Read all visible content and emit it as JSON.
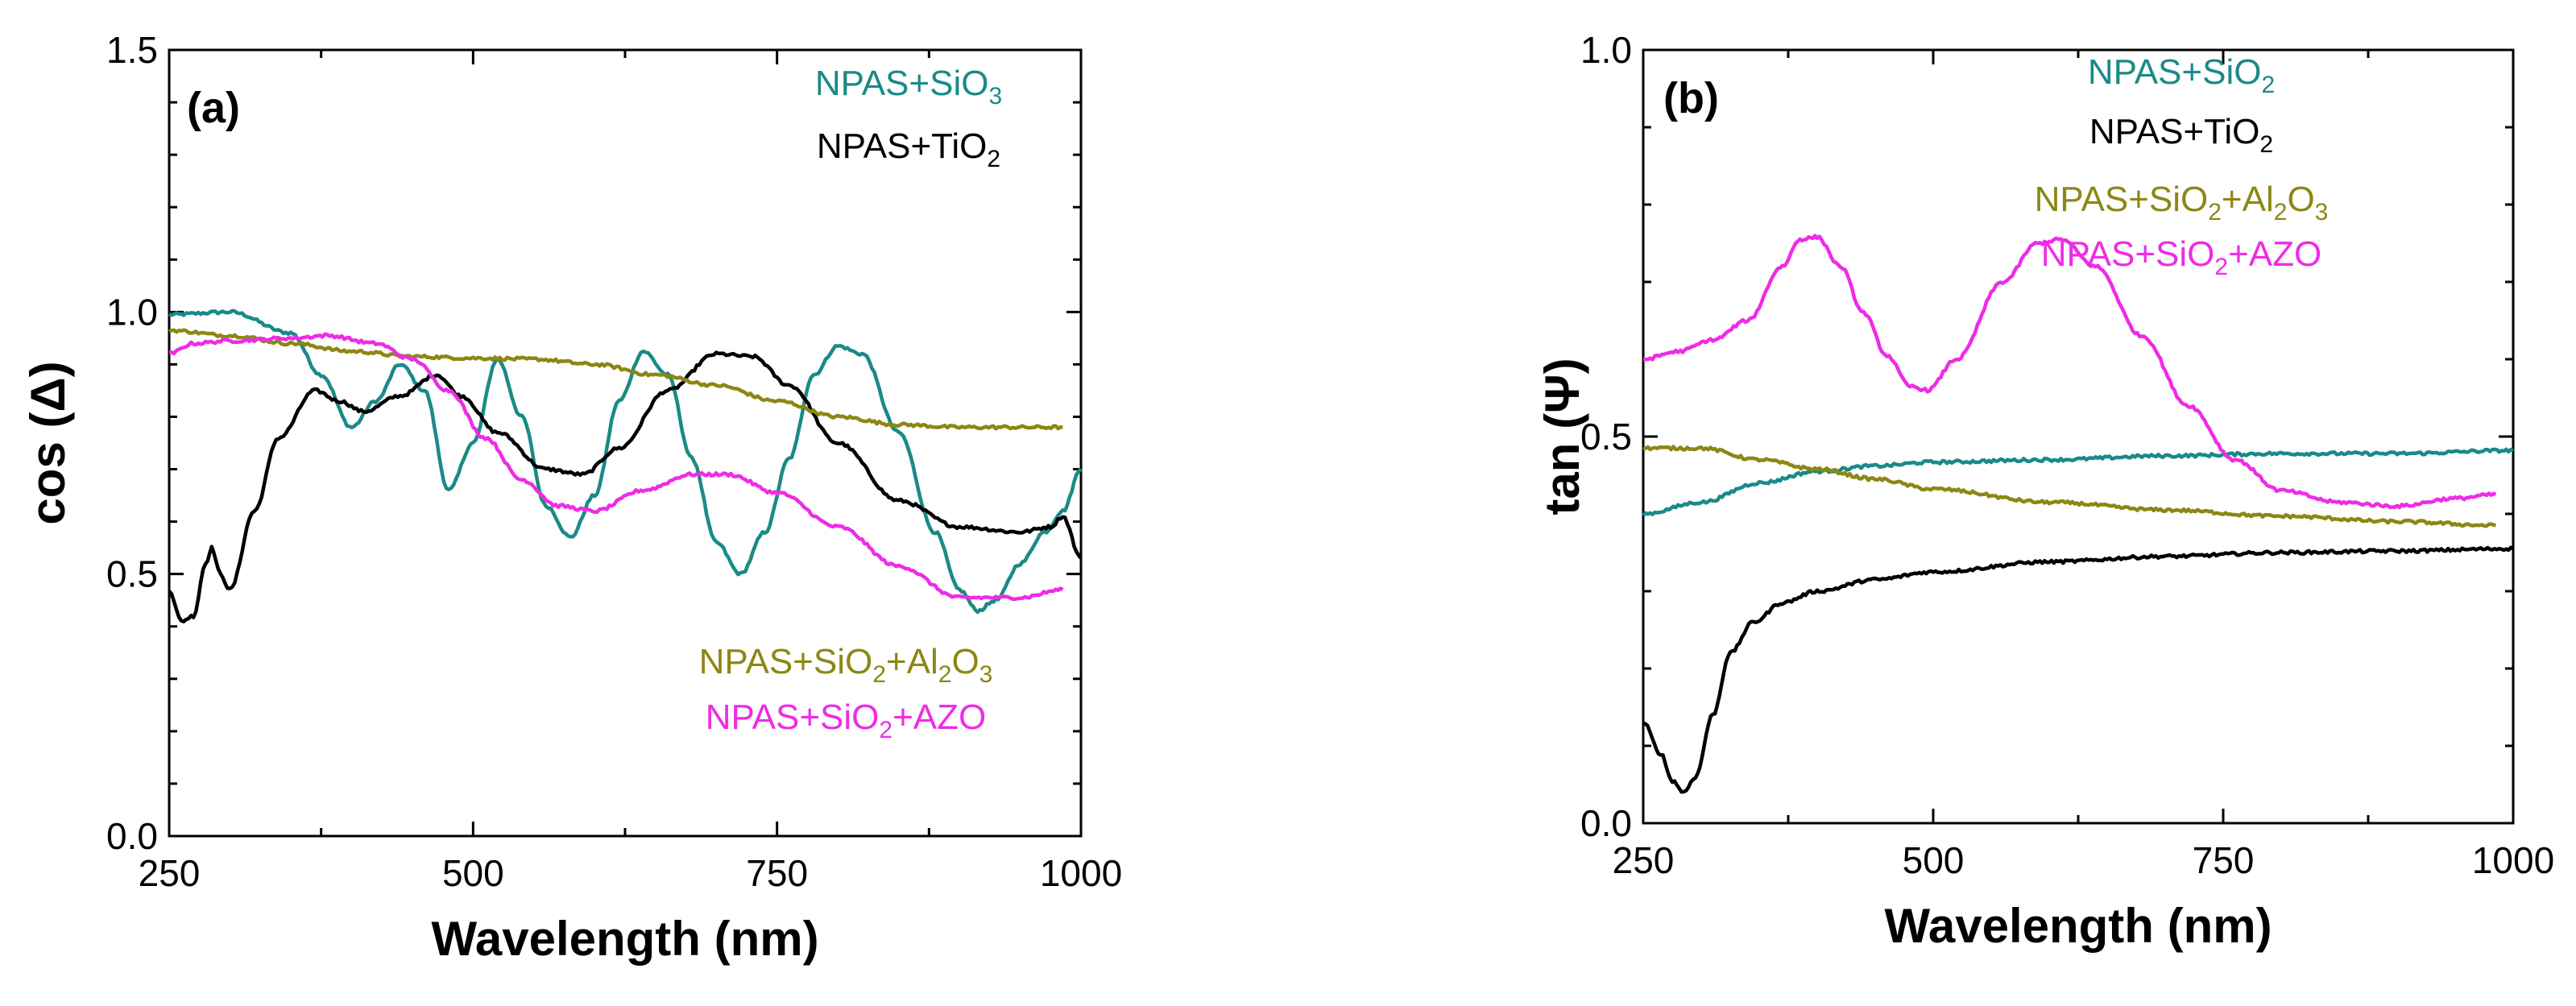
{
  "chart_data": [
    {
      "panel": "a",
      "type": "line",
      "panel_label": "(a)",
      "xlabel": "Wavelength (nm)",
      "ylabel": "cos (Δ)",
      "xlim": [
        250,
        1000
      ],
      "ylim": [
        0.0,
        1.5
      ],
      "x_ticks": [
        "250",
        "500",
        "750",
        "1000"
      ],
      "y_ticks": [
        "0.0",
        "0.5",
        "1.0",
        "1.5"
      ],
      "legend": [
        {
          "series": "NPAS+SiO3",
          "parts": [
            {
              "t": "NPAS+SiO"
            },
            {
              "t": "3",
              "sub": true
            }
          ]
        },
        {
          "series": "NPAS+TiO2",
          "parts": [
            {
              "t": "NPAS+TiO"
            },
            {
              "t": "2",
              "sub": true
            }
          ]
        },
        {
          "series": "NPAS+SiO2+Al2O3",
          "parts": [
            {
              "t": "NPAS+SiO"
            },
            {
              "t": "2",
              "sub": true
            },
            {
              "t": "+Al"
            },
            {
              "t": "2",
              "sub": true
            },
            {
              "t": "O"
            },
            {
              "t": "3",
              "sub": true
            }
          ]
        },
        {
          "series": "NPAS+SiO2+AZO",
          "parts": [
            {
              "t": "NPAS+SiO"
            },
            {
              "t": "2",
              "sub": true
            },
            {
              "t": "+AZO"
            }
          ]
        }
      ],
      "series": [
        {
          "name": "NPAS+SiO3",
          "color": "#1a8a87",
          "points": [
            [
              250,
              0.995
            ],
            [
              300,
              1.0
            ],
            [
              350,
              0.96
            ],
            [
              375,
              0.88
            ],
            [
              400,
              0.78
            ],
            [
              420,
              0.83
            ],
            [
              440,
              0.9
            ],
            [
              460,
              0.85
            ],
            [
              480,
              0.66
            ],
            [
              500,
              0.75
            ],
            [
              520,
              0.91
            ],
            [
              540,
              0.8
            ],
            [
              560,
              0.63
            ],
            [
              580,
              0.57
            ],
            [
              600,
              0.65
            ],
            [
              620,
              0.83
            ],
            [
              640,
              0.925
            ],
            [
              660,
              0.88
            ],
            [
              680,
              0.72
            ],
            [
              700,
              0.56
            ],
            [
              720,
              0.5
            ],
            [
              740,
              0.58
            ],
            [
              760,
              0.72
            ],
            [
              780,
              0.88
            ],
            [
              800,
              0.935
            ],
            [
              820,
              0.92
            ],
            [
              850,
              0.77
            ],
            [
              880,
              0.58
            ],
            [
              900,
              0.47
            ],
            [
              915,
              0.43
            ],
            [
              930,
              0.45
            ],
            [
              950,
              0.52
            ],
            [
              970,
              0.58
            ],
            [
              985,
              0.62
            ],
            [
              1000,
              0.7
            ]
          ]
        },
        {
          "name": "NPAS+TiO2",
          "color": "#000000",
          "points": [
            [
              250,
              0.47
            ],
            [
              260,
              0.41
            ],
            [
              270,
              0.42
            ],
            [
              280,
              0.52
            ],
            [
              285,
              0.55
            ],
            [
              292,
              0.5
            ],
            [
              300,
              0.47
            ],
            [
              320,
              0.62
            ],
            [
              340,
              0.76
            ],
            [
              370,
              0.85
            ],
            [
              390,
              0.83
            ],
            [
              410,
              0.81
            ],
            [
              440,
              0.84
            ],
            [
              470,
              0.88
            ],
            [
              490,
              0.84
            ],
            [
              520,
              0.77
            ],
            [
              560,
              0.7
            ],
            [
              590,
              0.69
            ],
            [
              620,
              0.74
            ],
            [
              660,
              0.85
            ],
            [
              700,
              0.92
            ],
            [
              730,
              0.915
            ],
            [
              760,
              0.86
            ],
            [
              800,
              0.75
            ],
            [
              850,
              0.64
            ],
            [
              900,
              0.59
            ],
            [
              950,
              0.58
            ],
            [
              975,
              0.59
            ],
            [
              985,
              0.61
            ],
            [
              1000,
              0.53
            ]
          ]
        },
        {
          "name": "NPAS+SiO2+Al2O3",
          "color": "#8c8714",
          "points": [
            [
              250,
              0.965
            ],
            [
              300,
              0.955
            ],
            [
              350,
              0.94
            ],
            [
              400,
              0.925
            ],
            [
              450,
              0.915
            ],
            [
              500,
              0.912
            ],
            [
              550,
              0.91
            ],
            [
              600,
              0.9
            ],
            [
              650,
              0.88
            ],
            [
              700,
              0.86
            ],
            [
              750,
              0.83
            ],
            [
              800,
              0.8
            ],
            [
              850,
              0.785
            ],
            [
              900,
              0.78
            ],
            [
              950,
              0.78
            ],
            [
              985,
              0.78
            ]
          ]
        },
        {
          "name": "NPAS+SiO2+AZO",
          "color": "#ee2ce6",
          "points": [
            [
              250,
              0.92
            ],
            [
              270,
              0.94
            ],
            [
              300,
              0.945
            ],
            [
              350,
              0.95
            ],
            [
              380,
              0.955
            ],
            [
              420,
              0.94
            ],
            [
              450,
              0.91
            ],
            [
              480,
              0.85
            ],
            [
              510,
              0.76
            ],
            [
              540,
              0.68
            ],
            [
              570,
              0.63
            ],
            [
              600,
              0.62
            ],
            [
              640,
              0.66
            ],
            [
              680,
              0.69
            ],
            [
              710,
              0.69
            ],
            [
              750,
              0.655
            ],
            [
              800,
              0.59
            ],
            [
              850,
              0.515
            ],
            [
              900,
              0.455
            ],
            [
              950,
              0.455
            ],
            [
              985,
              0.47
            ]
          ]
        }
      ]
    },
    {
      "panel": "b",
      "type": "line",
      "panel_label": "(b)",
      "xlabel": "Wavelength (nm)",
      "ylabel": "tan (Ψ)",
      "xlim": [
        250,
        1000
      ],
      "ylim": [
        0.0,
        1.0
      ],
      "x_ticks": [
        "250",
        "500",
        "750",
        "1000"
      ],
      "y_ticks": [
        "0.0",
        "0.5",
        "1.0"
      ],
      "legend": [
        {
          "series": "NPAS+SiO2",
          "parts": [
            {
              "t": "NPAS+SiO"
            },
            {
              "t": "2",
              "sub": true
            }
          ]
        },
        {
          "series": "NPAS+TiO2",
          "parts": [
            {
              "t": "NPAS+TiO"
            },
            {
              "t": "2",
              "sub": true
            }
          ]
        },
        {
          "series": "NPAS+SiO2+Al2O3",
          "parts": [
            {
              "t": "NPAS+SiO"
            },
            {
              "t": "2",
              "sub": true
            },
            {
              "t": "+Al"
            },
            {
              "t": "2",
              "sub": true
            },
            {
              "t": "O"
            },
            {
              "t": "3",
              "sub": true
            }
          ]
        },
        {
          "series": "NPAS+SiO2+AZO",
          "parts": [
            {
              "t": "NPAS+SiO"
            },
            {
              "t": "2",
              "sub": true
            },
            {
              "t": "+AZO"
            }
          ]
        }
      ],
      "series": [
        {
          "name": "NPAS+SiO2",
          "color": "#1a8a87",
          "points": [
            [
              250,
              0.4
            ],
            [
              300,
              0.415
            ],
            [
              350,
              0.44
            ],
            [
              400,
              0.455
            ],
            [
              450,
              0.462
            ],
            [
              500,
              0.467
            ],
            [
              600,
              0.47
            ],
            [
              700,
              0.475
            ],
            [
              800,
              0.478
            ],
            [
              900,
              0.478
            ],
            [
              1000,
              0.482
            ]
          ]
        },
        {
          "name": "NPAS+TiO2",
          "color": "#000000",
          "points": [
            [
              250,
              0.13
            ],
            [
              265,
              0.09
            ],
            [
              275,
              0.055
            ],
            [
              285,
              0.04
            ],
            [
              295,
              0.06
            ],
            [
              310,
              0.14
            ],
            [
              325,
              0.22
            ],
            [
              345,
              0.26
            ],
            [
              370,
              0.285
            ],
            [
              400,
              0.3
            ],
            [
              450,
              0.315
            ],
            [
              500,
              0.325
            ],
            [
              600,
              0.338
            ],
            [
              700,
              0.345
            ],
            [
              800,
              0.35
            ],
            [
              900,
              0.352
            ],
            [
              1000,
              0.355
            ]
          ]
        },
        {
          "name": "NPAS+SiO2+Al2O3",
          "color": "#8c8714",
          "points": [
            [
              250,
              0.485
            ],
            [
              300,
              0.485
            ],
            [
              350,
              0.47
            ],
            [
              400,
              0.458
            ],
            [
              450,
              0.445
            ],
            [
              500,
              0.432
            ],
            [
              600,
              0.415
            ],
            [
              700,
              0.405
            ],
            [
              800,
              0.397
            ],
            [
              900,
              0.39
            ],
            [
              985,
              0.385
            ]
          ]
        },
        {
          "name": "NPAS+SiO2+AZO",
          "color": "#ee2ce6",
          "points": [
            [
              250,
              0.6
            ],
            [
              280,
              0.61
            ],
            [
              310,
              0.625
            ],
            [
              340,
              0.65
            ],
            [
              370,
              0.72
            ],
            [
              385,
              0.755
            ],
            [
              400,
              0.758
            ],
            [
              420,
              0.72
            ],
            [
              440,
              0.66
            ],
            [
              460,
              0.605
            ],
            [
              480,
              0.565
            ],
            [
              495,
              0.56
            ],
            [
              520,
              0.6
            ],
            [
              560,
              0.7
            ],
            [
              590,
              0.75
            ],
            [
              610,
              0.755
            ],
            [
              640,
              0.72
            ],
            [
              680,
              0.63
            ],
            [
              720,
              0.54
            ],
            [
              760,
              0.47
            ],
            [
              800,
              0.43
            ],
            [
              850,
              0.415
            ],
            [
              900,
              0.41
            ],
            [
              950,
              0.42
            ],
            [
              985,
              0.425
            ]
          ]
        }
      ]
    }
  ]
}
